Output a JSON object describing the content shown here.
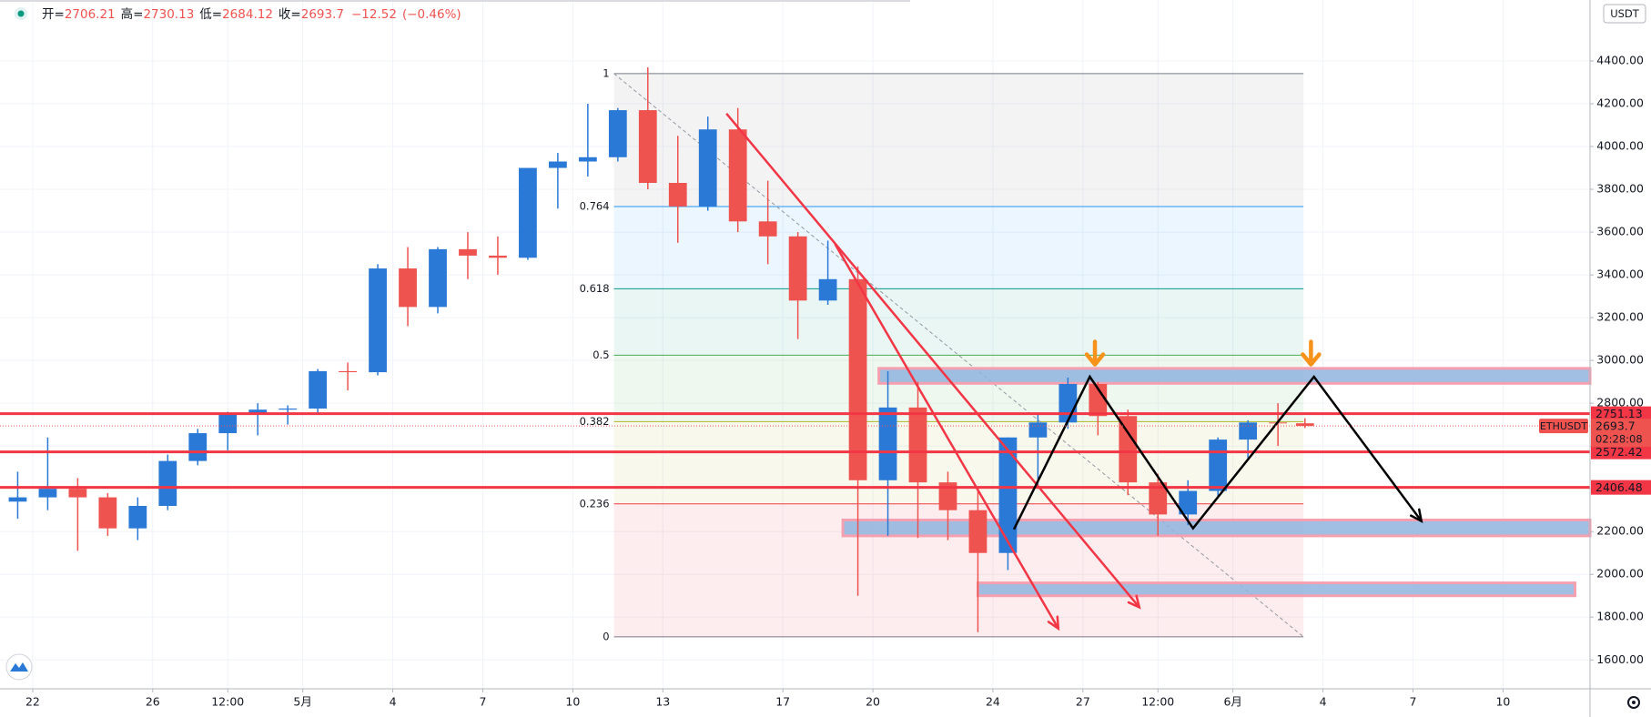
{
  "chart_data": {
    "type": "candlestick",
    "symbol": "ETHUSDT",
    "currency": "USDT",
    "countdown": "02:28:08",
    "header": {
      "labels": [
        "开=",
        "高=",
        "低=",
        "收="
      ],
      "change": {
        "value": -12.52,
        "label": "−12.52"
      },
      "change_pct": {
        "value": -0.46,
        "label": "(−0.46%)"
      }
    },
    "x": [
      -0.5,
      0.5,
      1.5,
      2.5,
      3.5,
      4.5,
      5.5,
      6.5,
      7.5,
      8.5,
      9.5,
      10.5,
      11.5,
      12.5,
      13.5,
      14.5,
      15.5,
      16.5,
      17.5,
      18.5,
      19.5,
      20.5,
      21.5,
      22.5,
      23.5,
      24.5,
      25.5,
      26.5,
      27.5,
      28.5,
      29.5,
      30.5,
      31.5,
      32.5,
      33.5,
      34.5,
      35.5,
      36.5,
      37.5,
      38.5,
      39.5,
      40.5,
      41.5,
      42.4
    ],
    "open": [
      2340,
      2360,
      2400,
      2360,
      2215,
      2320,
      2530,
      2660,
      2750,
      2770,
      2775,
      2950,
      2945,
      3430,
      3250,
      3520,
      3490,
      3480,
      3900,
      3930,
      3950,
      4170,
      3830,
      3720,
      4080,
      3650,
      3580,
      3280,
      3380,
      2440,
      2780,
      2430,
      2300,
      2100,
      2640,
      2710,
      2890,
      2740,
      2430,
      2280,
      2390,
      2630,
      2710,
      2706.21
    ],
    "high": [
      2480,
      2640,
      2450,
      2380,
      2360,
      2560,
      2680,
      2760,
      2800,
      2790,
      2960,
      2990,
      3450,
      3530,
      3530,
      3600,
      3580,
      3900,
      3970,
      4200,
      4180,
      4370,
      4050,
      4140,
      4180,
      3840,
      3600,
      3560,
      3440,
      2950,
      2900,
      2480,
      2390,
      2640,
      2750,
      2920,
      2900,
      2770,
      2470,
      2440,
      2640,
      2720,
      2800,
      2730.13
    ],
    "low": [
      2260,
      2300,
      2110,
      2180,
      2160,
      2300,
      2510,
      2580,
      2650,
      2700,
      2750,
      2860,
      2930,
      3160,
      3220,
      3380,
      3400,
      3470,
      3710,
      3860,
      3930,
      3800,
      3550,
      3700,
      3600,
      3450,
      3100,
      3260,
      1900,
      2180,
      2170,
      2160,
      1730,
      2020,
      2400,
      2680,
      2650,
      2370,
      2180,
      2230,
      2360,
      2540,
      2600,
      2684.12
    ],
    "close": [
      2360,
      2400,
      2360,
      2215,
      2320,
      2530,
      2660,
      2750,
      2770,
      2775,
      2950,
      2945,
      3430,
      3250,
      3520,
      3490,
      3480,
      3900,
      3930,
      3950,
      4170,
      3830,
      3720,
      4080,
      3650,
      3580,
      3280,
      3380,
      2440,
      2780,
      2430,
      2300,
      2100,
      2640,
      2710,
      2890,
      2740,
      2430,
      2280,
      2390,
      2630,
      2710,
      2706.21,
      2693.7
    ],
    "up_color": "#2a79d6",
    "down_color": "#ef5350",
    "xlim": [
      -1.09,
      51.9
    ],
    "xticks": [
      {
        "value": 0,
        "label": "22"
      },
      {
        "value": 4,
        "label": "26"
      },
      {
        "value": 6.5,
        "label": "12:00"
      },
      {
        "value": 9,
        "label": "5月"
      },
      {
        "value": 12,
        "label": "4"
      },
      {
        "value": 15,
        "label": "7"
      },
      {
        "value": 18,
        "label": "10"
      },
      {
        "value": 21,
        "label": "13"
      },
      {
        "value": 25,
        "label": "17"
      },
      {
        "value": 28,
        "label": "20"
      },
      {
        "value": 32,
        "label": "24"
      },
      {
        "value": 35,
        "label": "27"
      },
      {
        "value": 37.5,
        "label": "12:00"
      },
      {
        "value": 40,
        "label": "6月"
      },
      {
        "value": 43,
        "label": "4"
      },
      {
        "value": 46,
        "label": "7"
      },
      {
        "value": 49,
        "label": "10"
      }
    ],
    "ylim": [
      1465,
      4685
    ],
    "yticks": [
      {
        "value": 1600,
        "label": "1600.00"
      },
      {
        "value": 1800,
        "label": "1800.00"
      },
      {
        "value": 2000,
        "label": "2000.00"
      },
      {
        "value": 2200,
        "label": "2200.00"
      },
      {
        "value": 2400,
        "label": "2400.00"
      },
      {
        "value": 2600,
        "label": "2600.00"
      },
      {
        "value": 2800,
        "label": "2800.00"
      },
      {
        "value": 3000,
        "label": "3000.00"
      },
      {
        "value": 3200,
        "label": "3200.00"
      },
      {
        "value": 3400,
        "label": "3400.00"
      },
      {
        "value": 3600,
        "label": "3600.00"
      },
      {
        "value": 3800,
        "label": "3800.00"
      },
      {
        "value": 4000,
        "label": "4000.00"
      },
      {
        "value": 4200,
        "label": "4200.00"
      },
      {
        "value": 4400,
        "label": "4400.00"
      }
    ],
    "grid": true,
    "levels": [
      2751.13,
      2572.42,
      2406.48
    ],
    "level_color": "#f23645",
    "fib": {
      "from": [
        19.37,
        4341
      ],
      "to": [
        42.35,
        1708
      ],
      "levels": [
        0,
        0.236,
        0.382,
        0.5,
        0.618,
        0.764,
        1
      ],
      "colors": [
        "#787b86",
        "#f23645",
        "#b5b92a",
        "#4caf50",
        "#089981",
        "#2196f3",
        "#787b86"
      ]
    },
    "zones": [
      {
        "x": [
          28.2,
          51.9
        ],
        "y": [
          2893,
          2963
        ]
      },
      {
        "x": [
          27.0,
          51.9
        ],
        "y": [
          2180,
          2254
        ]
      },
      {
        "x": [
          31.5,
          51.4
        ],
        "y": [
          1900,
          1960
        ]
      }
    ],
    "zone_color": "#8fb4de",
    "zone_border": "#f4a0b0",
    "arrows": [
      {
        "x": [
          23.12,
          36.88
        ],
        "y": [
          4154,
          1846
        ]
      },
      {
        "x": [
          26.74,
          34.18
        ],
        "y": [
          3544,
          1747
        ]
      }
    ],
    "arrow_color": "#f23645",
    "projection": {
      "x": [
        32.7,
        35.23,
        38.67,
        42.7,
        46.28
      ],
      "y": [
        2210,
        2924,
        2215,
        2924,
        2249
      ],
      "color": "#000000"
    },
    "markers": {
      "x": [
        35.4,
        42.6
      ],
      "y": [
        2960,
        2960
      ],
      "color": "#f7931a"
    }
  }
}
